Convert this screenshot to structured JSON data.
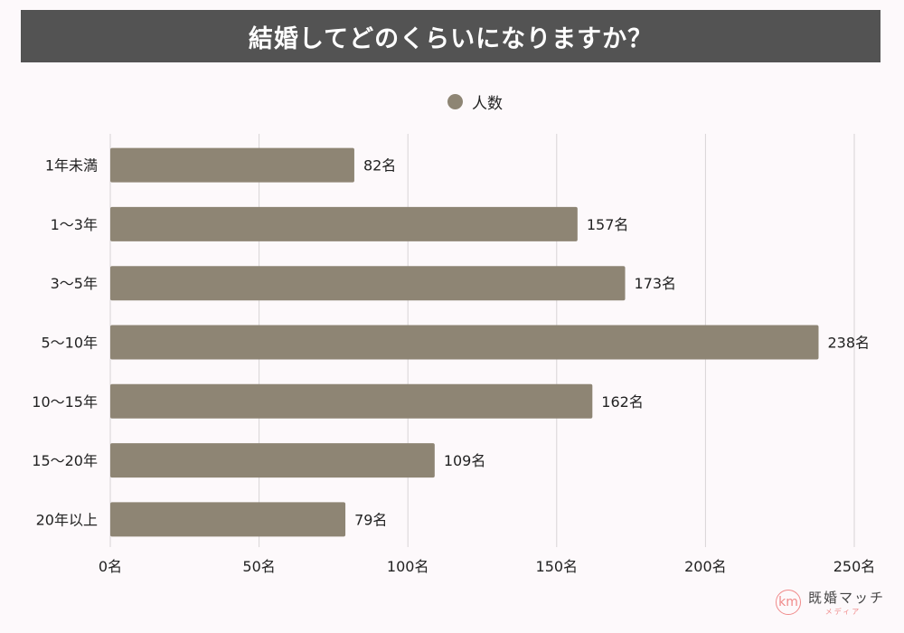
{
  "chart_data": {
    "type": "bar",
    "orientation": "horizontal",
    "title": "結婚してどのくらいになりますか？",
    "categories": [
      "1年未満",
      "1〜3年",
      "3〜5年",
      "5〜10年",
      "10〜15年",
      "15〜20年",
      "20年以上"
    ],
    "series": [
      {
        "name": "人数",
        "values": [
          82,
          157,
          173,
          238,
          162,
          109,
          79
        ],
        "color": "#8e8574"
      }
    ],
    "value_suffix": "名",
    "data_labels": [
      "82名",
      "157名",
      "173名",
      "238名",
      "162名",
      "109名",
      "79名"
    ],
    "xlim": [
      0,
      250
    ],
    "xticks": [
      0,
      50,
      100,
      150,
      200,
      250
    ],
    "xtick_labels": [
      "0名",
      "50名",
      "100名",
      "150名",
      "200名",
      "250名"
    ],
    "grid": true,
    "legend_position": "top-center"
  },
  "logo": {
    "mark": "km",
    "name": "既婚マッチ",
    "sub": "メディア"
  }
}
